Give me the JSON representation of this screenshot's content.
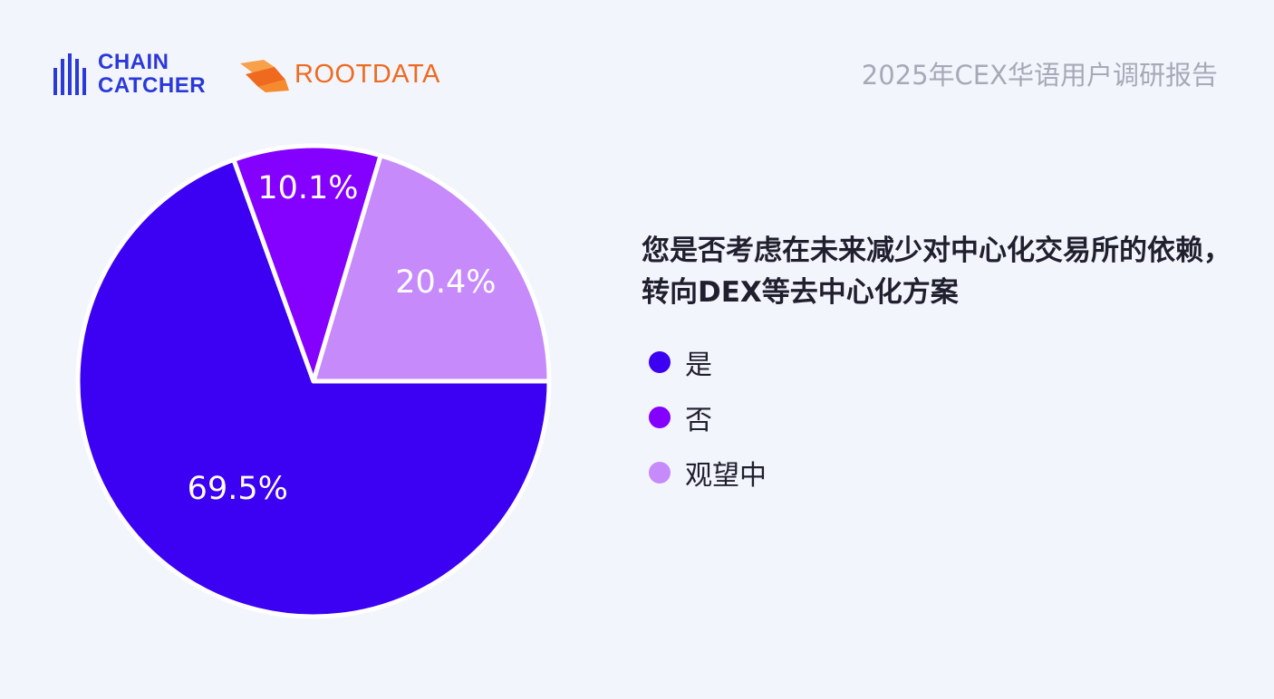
{
  "header": {
    "chaincatcher": {
      "line1": "CHAIN",
      "line2": "CATCHER"
    },
    "rootdata": "ROOTDATA",
    "report_title": "2025年CEX华语用户调研报告"
  },
  "colors": {
    "background": "#f3f5fd",
    "chaincatcher_brand": "#2b39d9",
    "rootdata_brand": "#ef6a1f",
    "yes": "#3c00f2",
    "no": "#8400ff",
    "watching": "#c68afa"
  },
  "chart_data": {
    "type": "pie",
    "title": "您是否考虑在未来减少对中心化交易所的依赖，转向DEX等去中心化方案",
    "slices": [
      {
        "name": "是",
        "value": 69.5,
        "label": "69.5%",
        "color": "#3c00f2"
      },
      {
        "name": "否",
        "value": 10.1,
        "label": "10.1%",
        "color": "#8400ff"
      },
      {
        "name": "观望中",
        "value": 20.4,
        "label": "20.4%",
        "color": "#c68afa"
      }
    ],
    "legend_position": "right"
  }
}
